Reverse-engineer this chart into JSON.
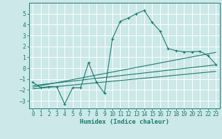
{
  "title": "",
  "xlabel": "Humidex (Indice chaleur)",
  "background_color": "#cce8e8",
  "grid_color": "#ffffff",
  "line_color": "#1a7a6e",
  "xlim": [
    -0.5,
    23.5
  ],
  "ylim": [
    -3.7,
    6.0
  ],
  "yticks": [
    -3,
    -2,
    -1,
    0,
    1,
    2,
    3,
    4,
    5
  ],
  "xticks": [
    0,
    1,
    2,
    3,
    4,
    5,
    6,
    7,
    8,
    9,
    10,
    11,
    12,
    13,
    14,
    15,
    16,
    17,
    18,
    19,
    20,
    21,
    22,
    23
  ],
  "curve_x": [
    0,
    1,
    2,
    3,
    4,
    5,
    6,
    7,
    8,
    9,
    10,
    11,
    12,
    13,
    14,
    15,
    16,
    17,
    18,
    19,
    20,
    21,
    22,
    23
  ],
  "curve_y": [
    -1.3,
    -1.8,
    -1.7,
    -1.7,
    -3.3,
    -1.8,
    -1.8,
    0.5,
    -1.3,
    -2.3,
    2.7,
    4.3,
    4.6,
    5.0,
    5.3,
    4.2,
    3.4,
    1.8,
    1.6,
    1.5,
    1.5,
    1.55,
    1.15,
    0.35
  ],
  "line1_x": [
    0,
    23
  ],
  "line1_y": [
    -1.6,
    0.3
  ],
  "line2_x": [
    0,
    23
  ],
  "line2_y": [
    -1.75,
    1.45
  ],
  "line3_x": [
    0,
    23
  ],
  "line3_y": [
    -1.9,
    -0.3
  ],
  "tick_fontsize": 5.5,
  "xlabel_fontsize": 6.5,
  "line_width": 0.8,
  "marker_size": 3.0
}
